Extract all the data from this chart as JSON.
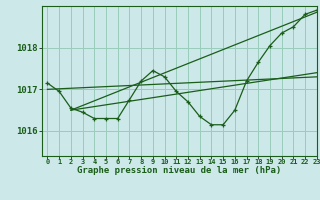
{
  "background_color": "#cce8e8",
  "grid_color": "#99ccbb",
  "line_color": "#1a5e1a",
  "title": "Graphe pression niveau de la mer (hPa)",
  "yticks": [
    1016,
    1017,
    1018
  ],
  "xlim": [
    -0.5,
    23
  ],
  "ylim": [
    1015.4,
    1019.0
  ],
  "hours": [
    0,
    1,
    2,
    3,
    4,
    5,
    6,
    7,
    8,
    9,
    10,
    11,
    12,
    13,
    14,
    15,
    16,
    17,
    18,
    19,
    20,
    21,
    22,
    23
  ],
  "main_series": [
    1017.15,
    1016.95,
    1016.55,
    1016.45,
    1016.3,
    1016.3,
    1016.3,
    1016.75,
    1017.2,
    1017.45,
    1017.3,
    1016.95,
    1016.7,
    1016.35,
    1016.15,
    1016.15,
    1016.5,
    1017.2,
    1017.65,
    1018.05,
    1018.35,
    1018.5,
    1018.8,
    1018.9
  ],
  "trend1_x": [
    0,
    23
  ],
  "trend1_y": [
    1017.0,
    1017.3
  ],
  "trend2_x": [
    2,
    23
  ],
  "trend2_y": [
    1016.5,
    1017.4
  ],
  "trend3_x": [
    2,
    23
  ],
  "trend3_y": [
    1016.5,
    1018.85
  ]
}
